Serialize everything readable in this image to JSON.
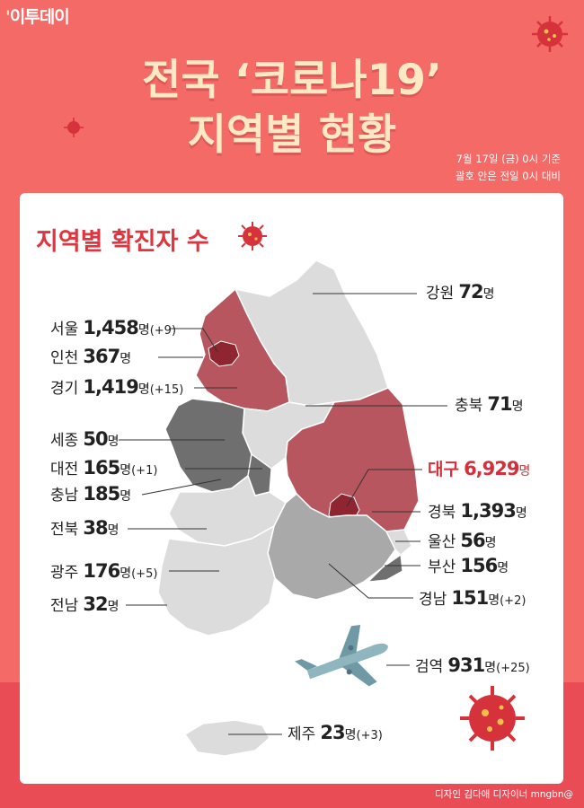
{
  "logo": {
    "mark": "'",
    "text": "이투데이"
  },
  "title": {
    "line1": "전국 ‘코로나19’",
    "line2": "지역별 현황"
  },
  "date": {
    "line1": "7월 17일 (금) 0시 기준",
    "line2": "괄호 안은 전일 0시 대비"
  },
  "panel_title": "지역별 확진자 수",
  "regions": [
    {
      "id": "gangwon",
      "name": "강원",
      "count": "72",
      "unit": "명",
      "change": ""
    },
    {
      "id": "seoul",
      "name": "서울",
      "count": "1,458",
      "unit": "명",
      "change": "(+9)"
    },
    {
      "id": "incheon",
      "name": "인천",
      "count": "367",
      "unit": "명",
      "change": ""
    },
    {
      "id": "gyeonggi",
      "name": "경기",
      "count": "1,419",
      "unit": "명",
      "change": "(+15)"
    },
    {
      "id": "chungbuk",
      "name": "충북",
      "count": "71",
      "unit": "명",
      "change": ""
    },
    {
      "id": "sejong",
      "name": "세종",
      "count": "50",
      "unit": "명",
      "change": ""
    },
    {
      "id": "daejeon",
      "name": "대전",
      "count": "165",
      "unit": "명",
      "change": "(+1)"
    },
    {
      "id": "daegu",
      "name": "대구",
      "count": "6,929",
      "unit": "명",
      "change": ""
    },
    {
      "id": "chungnam",
      "name": "충남",
      "count": "185",
      "unit": "명",
      "change": ""
    },
    {
      "id": "gyeongbuk",
      "name": "경북",
      "count": "1,393",
      "unit": "명",
      "change": ""
    },
    {
      "id": "jeonbuk",
      "name": "전북",
      "count": "38",
      "unit": "명",
      "change": ""
    },
    {
      "id": "ulsan",
      "name": "울산",
      "count": "56",
      "unit": "명",
      "change": ""
    },
    {
      "id": "busan",
      "name": "부산",
      "count": "156",
      "unit": "명",
      "change": ""
    },
    {
      "id": "gwangju",
      "name": "광주",
      "count": "176",
      "unit": "명",
      "change": "(+5)"
    },
    {
      "id": "gyeongnam",
      "name": "경남",
      "count": "151",
      "unit": "명",
      "change": "(+2)"
    },
    {
      "id": "jeonnam",
      "name": "전남",
      "count": "32",
      "unit": "명",
      "change": ""
    },
    {
      "id": "quarantine",
      "name": "검역",
      "count": "931",
      "unit": "명",
      "change": "(+25)"
    },
    {
      "id": "jeju",
      "name": "제주",
      "count": "23",
      "unit": "명",
      "change": "(+3)"
    }
  ],
  "colors": {
    "background": "#f36a67",
    "title": "#ffe9c4",
    "highlight": "#d2303a",
    "map_light": "#dcdcdc",
    "map_mid": "#a9a9a9",
    "map_dark": "#6f6f6f",
    "map_red": "#b8565f",
    "map_darkred": "#8e2530"
  },
  "credit": "디자인 김다애 디자이너 mngbn@"
}
